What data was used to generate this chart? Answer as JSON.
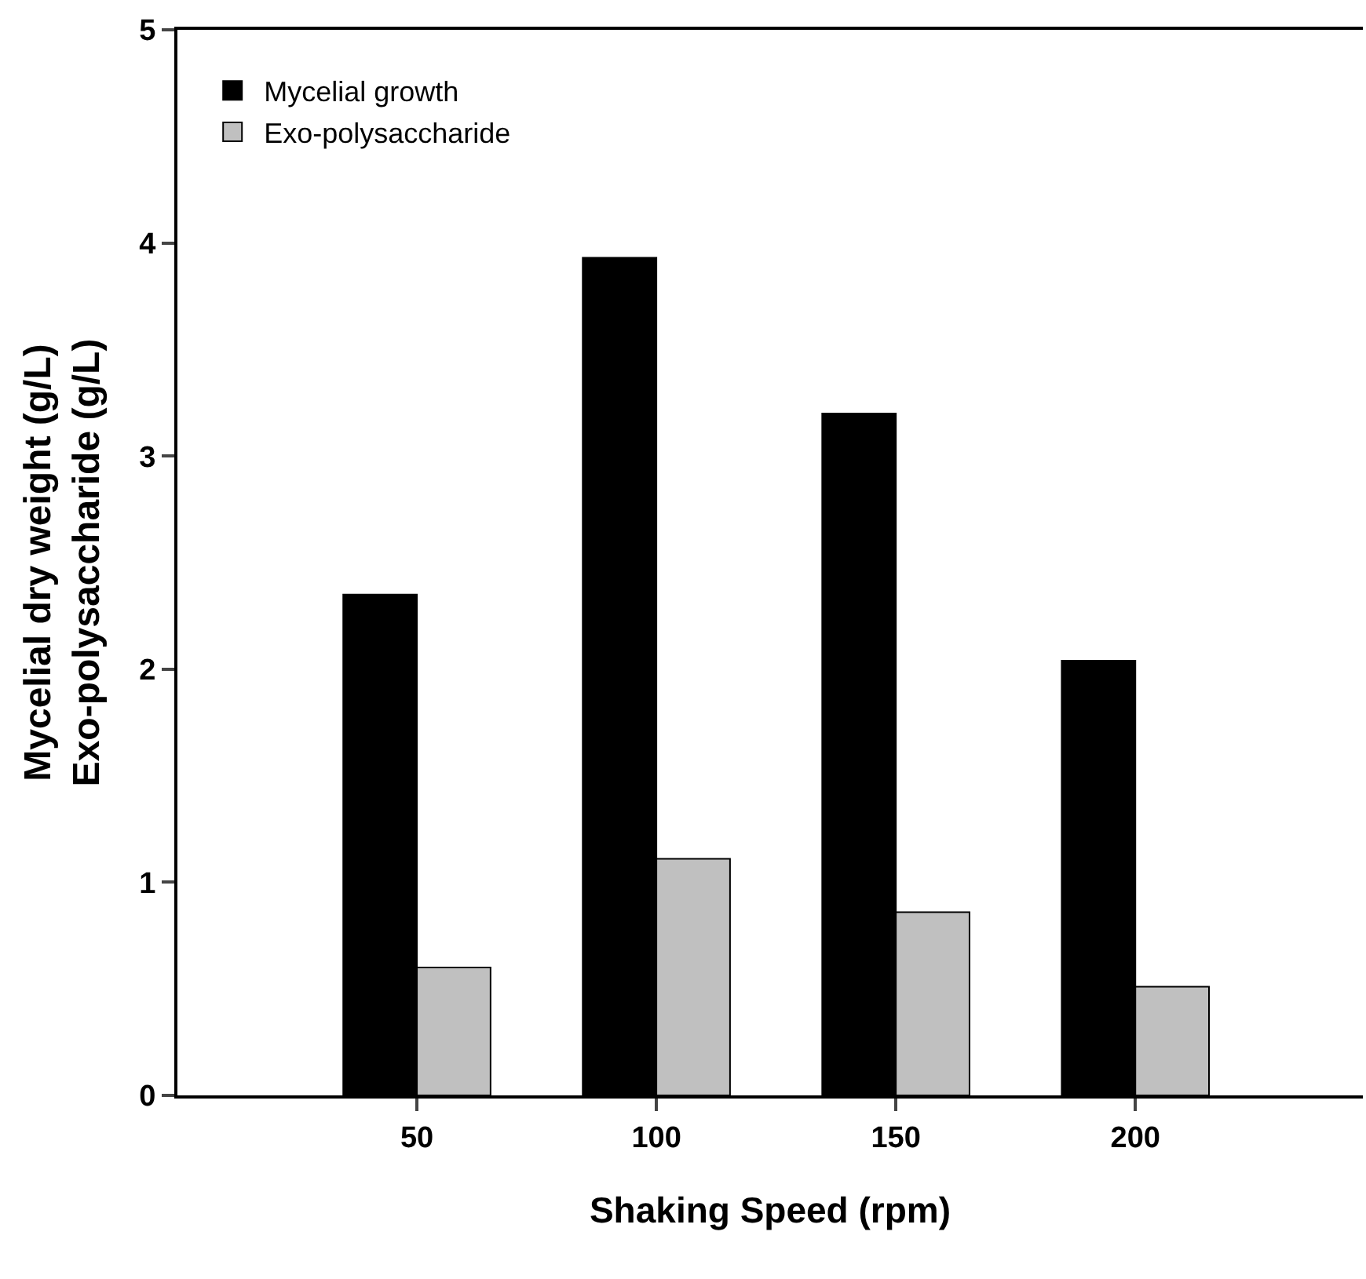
{
  "chart_data": {
    "type": "bar",
    "xlabel": "Shaking Speed (rpm)",
    "ylabel": "Mycelial dry weight (g/L)\nExo-polysaccharide (g/L)",
    "categories": [
      "50",
      "100",
      "150",
      "200"
    ],
    "series": [
      {
        "name": "Mycelial growth",
        "color": "#000000",
        "values": [
          2.35,
          3.93,
          3.2,
          2.04
        ]
      },
      {
        "name": "Exo-polysaccharide",
        "color": "#c0c0c0",
        "values": [
          0.6,
          1.11,
          0.86,
          0.51
        ]
      }
    ],
    "ylim": [
      0,
      5
    ],
    "yticks": [
      0,
      1,
      2,
      3,
      4,
      5
    ],
    "grid": false,
    "legend": "top left"
  }
}
